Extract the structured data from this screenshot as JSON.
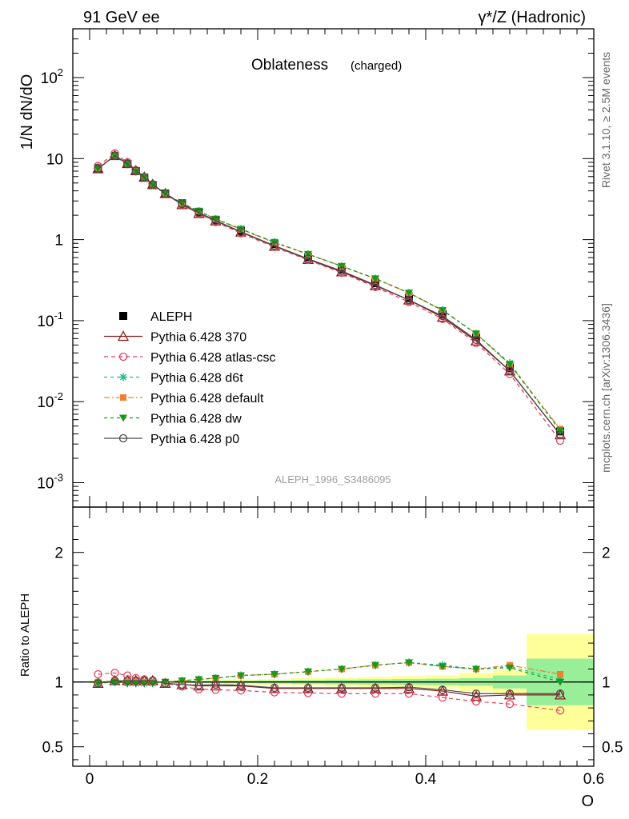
{
  "header": {
    "left": "91 GeV ee",
    "right": "γ*/Z (Hadronic)"
  },
  "side_labels": {
    "rivet": "Rivet 3.1.10, ≥ 2.5M events",
    "mcplots": "mcplots.cern.ch [arXiv:1306.3436]"
  },
  "chart_data": [
    {
      "type": "line",
      "title": "Oblateness",
      "subtitle": "(charged)",
      "ylabel": "1/N dN/dO",
      "xlabel": "",
      "yscale": "log",
      "ylim": [
        0.0005,
        400
      ],
      "xlim": [
        -0.02,
        0.6
      ],
      "watermark": "ALEPH_1996_S3486095",
      "legend_position": "left",
      "y_tick_labels": [
        "10^-3",
        "10^-2",
        "10^-1",
        "1",
        "10",
        "10^2"
      ],
      "x": [
        0.01,
        0.03,
        0.045,
        0.055,
        0.065,
        0.075,
        0.09,
        0.11,
        0.13,
        0.15,
        0.18,
        0.22,
        0.26,
        0.3,
        0.34,
        0.38,
        0.42,
        0.46,
        0.5,
        0.56
      ],
      "series": [
        {
          "name": "ALEPH",
          "color": "#000000",
          "marker": "square",
          "dash": "",
          "values": [
            7.6,
            10.8,
            8.6,
            7.0,
            5.8,
            4.7,
            3.7,
            2.8,
            2.2,
            1.75,
            1.28,
            0.88,
            0.61,
            0.43,
            0.29,
            0.19,
            0.12,
            0.063,
            0.026,
            0.0043
          ]
        },
        {
          "name": "Pythia 6.428 370",
          "color": "#8b1a1a",
          "marker": "triangle-open",
          "dash": "",
          "values": [
            7.5,
            10.9,
            8.7,
            7.1,
            5.9,
            4.8,
            3.7,
            2.7,
            2.1,
            1.7,
            1.24,
            0.83,
            0.57,
            0.4,
            0.27,
            0.18,
            0.11,
            0.056,
            0.024,
            0.0039
          ]
        },
        {
          "name": "Pythia 6.428 atlas-csc",
          "color": "#e8405e",
          "marker": "circle-open",
          "dash": "5,4",
          "values": [
            8.1,
            11.6,
            9.0,
            7.2,
            5.9,
            4.8,
            3.7,
            2.7,
            2.1,
            1.65,
            1.2,
            0.81,
            0.56,
            0.39,
            0.26,
            0.17,
            0.105,
            0.053,
            0.022,
            0.0033
          ]
        },
        {
          "name": "Pythia 6.428 d6t",
          "color": "#1fbf8f",
          "marker": "star",
          "dash": "4,4",
          "values": [
            7.5,
            10.8,
            8.5,
            6.9,
            5.8,
            4.7,
            3.7,
            2.8,
            2.25,
            1.8,
            1.35,
            0.93,
            0.66,
            0.47,
            0.33,
            0.22,
            0.135,
            0.069,
            0.03,
            0.0044
          ]
        },
        {
          "name": "Pythia 6.428 default",
          "color": "#f08030",
          "marker": "square-filled",
          "dash": "7,3,2,3",
          "values": [
            7.6,
            10.9,
            8.6,
            7.0,
            5.8,
            4.7,
            3.7,
            2.8,
            2.25,
            1.8,
            1.34,
            0.92,
            0.66,
            0.47,
            0.33,
            0.22,
            0.134,
            0.069,
            0.029,
            0.0046
          ]
        },
        {
          "name": "Pythia 6.428 dw",
          "color": "#1a9a1a",
          "marker": "triangle-down-filled",
          "dash": "4,4",
          "values": [
            7.5,
            10.8,
            8.5,
            6.9,
            5.8,
            4.7,
            3.7,
            2.8,
            2.25,
            1.8,
            1.35,
            0.93,
            0.66,
            0.47,
            0.33,
            0.22,
            0.134,
            0.069,
            0.029,
            0.0044
          ]
        },
        {
          "name": "Pythia 6.428 p0",
          "color": "#4a4a4a",
          "marker": "circle-open",
          "dash": "",
          "values": [
            7.5,
            10.9,
            8.6,
            7.1,
            5.9,
            4.8,
            3.7,
            2.75,
            2.15,
            1.72,
            1.25,
            0.84,
            0.58,
            0.41,
            0.275,
            0.18,
            0.114,
            0.058,
            0.024,
            0.0039
          ]
        }
      ]
    },
    {
      "type": "line",
      "ylabel": "Ratio to ALEPH",
      "xlabel": "O",
      "yscale": "linear",
      "ylim": [
        0.35,
        2.35
      ],
      "xlim": [
        -0.02,
        0.6
      ],
      "y_tick_labels": [
        "0.5",
        "1",
        "2"
      ],
      "x_tick_labels": [
        "0",
        "0.2",
        "0.4",
        "0.6"
      ],
      "ref_line": 1,
      "bands": {
        "x_edges": [
          0.0,
          0.02,
          0.04,
          0.05,
          0.06,
          0.07,
          0.08,
          0.1,
          0.12,
          0.14,
          0.16,
          0.2,
          0.24,
          0.28,
          0.32,
          0.36,
          0.4,
          0.44,
          0.48,
          0.52,
          0.6
        ],
        "green_halfwidth": [
          0.006,
          0.006,
          0.006,
          0.006,
          0.006,
          0.006,
          0.006,
          0.006,
          0.008,
          0.008,
          0.01,
          0.012,
          0.015,
          0.018,
          0.02,
          0.022,
          0.025,
          0.03,
          0.05,
          0.18
        ],
        "yellow_halfwidth": [
          0.01,
          0.01,
          0.01,
          0.01,
          0.01,
          0.01,
          0.01,
          0.01,
          0.012,
          0.015,
          0.018,
          0.022,
          0.03,
          0.035,
          0.04,
          0.045,
          0.05,
          0.07,
          0.09,
          0.37
        ]
      },
      "x": [
        0.01,
        0.03,
        0.045,
        0.055,
        0.065,
        0.075,
        0.09,
        0.11,
        0.13,
        0.15,
        0.18,
        0.22,
        0.26,
        0.3,
        0.34,
        0.38,
        0.42,
        0.46,
        0.5,
        0.56
      ],
      "series": [
        {
          "name": "Pythia 6.428 370",
          "values": [
            0.99,
            1.01,
            1.01,
            1.01,
            1.01,
            1.01,
            0.99,
            0.98,
            0.97,
            0.97,
            0.97,
            0.95,
            0.95,
            0.95,
            0.95,
            0.95,
            0.93,
            0.89,
            0.9,
            0.9
          ]
        },
        {
          "name": "Pythia 6.428 atlas-csc",
          "values": [
            1.06,
            1.07,
            1.05,
            1.03,
            1.02,
            1.01,
            0.99,
            0.965,
            0.945,
            0.94,
            0.935,
            0.92,
            0.915,
            0.91,
            0.91,
            0.91,
            0.88,
            0.85,
            0.83,
            0.78
          ]
        },
        {
          "name": "Pythia 6.428 d6t",
          "values": [
            0.99,
            1.0,
            0.99,
            0.99,
            0.99,
            0.99,
            1.0,
            1.01,
            1.02,
            1.03,
            1.05,
            1.06,
            1.08,
            1.1,
            1.13,
            1.15,
            1.13,
            1.1,
            1.12,
            1.02
          ]
        },
        {
          "name": "Pythia 6.428 default",
          "values": [
            1.0,
            1.01,
            1.0,
            1.0,
            1.0,
            1.0,
            1.0,
            1.01,
            1.02,
            1.03,
            1.05,
            1.06,
            1.08,
            1.1,
            1.13,
            1.15,
            1.12,
            1.1,
            1.13,
            1.06
          ]
        },
        {
          "name": "Pythia 6.428 dw",
          "values": [
            0.99,
            1.0,
            0.99,
            0.99,
            0.99,
            0.99,
            1.0,
            1.01,
            1.02,
            1.03,
            1.05,
            1.06,
            1.08,
            1.1,
            1.13,
            1.15,
            1.12,
            1.1,
            1.11,
            1.0
          ]
        },
        {
          "name": "Pythia 6.428 p0",
          "values": [
            0.99,
            1.01,
            1.01,
            1.01,
            1.01,
            1.01,
            0.99,
            0.98,
            0.975,
            0.98,
            0.975,
            0.955,
            0.955,
            0.955,
            0.955,
            0.96,
            0.94,
            0.91,
            0.91,
            0.91
          ]
        }
      ]
    }
  ]
}
